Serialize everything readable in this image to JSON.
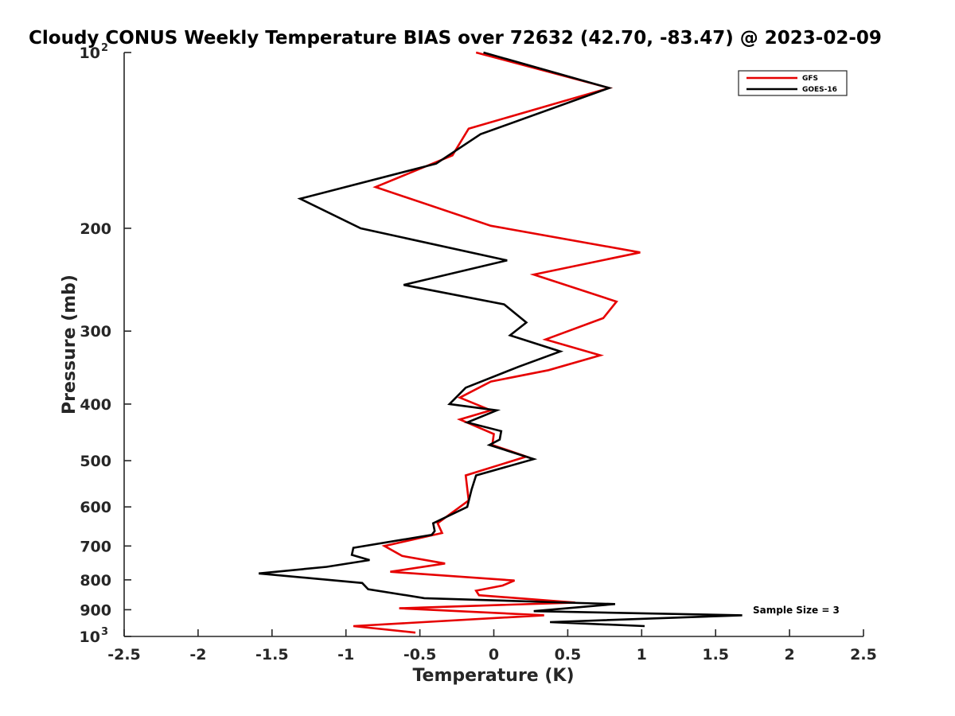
{
  "chart_data": {
    "type": "line",
    "title": "Cloudy CONUS Weekly Temperature BIAS over 72632 (42.70, -83.47) @ 2023-02-09",
    "xlabel": "Temperature (K)",
    "ylabel": "Pressure (mb)",
    "xlim": [
      -2.5,
      2.5
    ],
    "ylim": [
      100,
      1000
    ],
    "y_scale": "log",
    "y_reversed": true,
    "grid": false,
    "legend_position": "top-right",
    "x_ticks": [
      {
        "value": -2.5,
        "label": "-2.5"
      },
      {
        "value": -2,
        "label": "-2"
      },
      {
        "value": -1.5,
        "label": "-1.5"
      },
      {
        "value": -1,
        "label": "-1"
      },
      {
        "value": -0.5,
        "label": "-0.5"
      },
      {
        "value": 0,
        "label": "0"
      },
      {
        "value": 0.5,
        "label": "0.5"
      },
      {
        "value": 1,
        "label": "1"
      },
      {
        "value": 1.5,
        "label": "1.5"
      },
      {
        "value": 2,
        "label": "2"
      },
      {
        "value": 2.5,
        "label": "2.5"
      }
    ],
    "y_ticks": [
      {
        "value": 100,
        "label": "10",
        "sup": "2"
      },
      {
        "value": 200,
        "label": "200"
      },
      {
        "value": 300,
        "label": "300"
      },
      {
        "value": 400,
        "label": "400"
      },
      {
        "value": 500,
        "label": "500"
      },
      {
        "value": 600,
        "label": "600"
      },
      {
        "value": 700,
        "label": "700"
      },
      {
        "value": 800,
        "label": "800"
      },
      {
        "value": 900,
        "label": "900"
      },
      {
        "value": 1000,
        "label": "10",
        "sup": "3"
      }
    ],
    "series": [
      {
        "name": "GFS",
        "color": "#e60000",
        "points": [
          [
            -0.12,
            100
          ],
          [
            0.78,
            115
          ],
          [
            -0.17,
            135
          ],
          [
            -0.28,
            150
          ],
          [
            -0.8,
            170
          ],
          [
            -0.02,
            198
          ],
          [
            0.99,
            220
          ],
          [
            0.27,
            240
          ],
          [
            0.83,
            267
          ],
          [
            0.74,
            285
          ],
          [
            0.35,
            310
          ],
          [
            0.72,
            330
          ],
          [
            0.37,
            350
          ],
          [
            -0.02,
            366
          ],
          [
            -0.23,
            390
          ],
          [
            -0.02,
            410
          ],
          [
            -0.23,
            425
          ],
          [
            0.0,
            450
          ],
          [
            -0.01,
            470
          ],
          [
            0.22,
            492
          ],
          [
            -0.19,
            530
          ],
          [
            -0.17,
            585
          ],
          [
            -0.38,
            640
          ],
          [
            -0.35,
            665
          ],
          [
            -0.74,
            700
          ],
          [
            -0.62,
            728
          ],
          [
            -0.33,
            750
          ],
          [
            -0.7,
            775
          ],
          [
            0.14,
            802
          ],
          [
            0.06,
            818
          ],
          [
            -0.12,
            835
          ],
          [
            -0.1,
            850
          ],
          [
            0.55,
            875
          ],
          [
            -0.64,
            895
          ],
          [
            0.34,
            920
          ],
          [
            -0.95,
            960
          ],
          [
            -0.53,
            985
          ]
        ]
      },
      {
        "name": "GOES-16",
        "color": "#000000",
        "points": [
          [
            -0.07,
            100
          ],
          [
            0.78,
            115
          ],
          [
            -0.09,
            138
          ],
          [
            -0.39,
            155
          ],
          [
            -1.31,
            178
          ],
          [
            -0.9,
            200
          ],
          [
            0.09,
            227
          ],
          [
            -0.61,
            250
          ],
          [
            0.07,
            270
          ],
          [
            0.22,
            290
          ],
          [
            0.11,
            305
          ],
          [
            0.45,
            325
          ],
          [
            0.17,
            345
          ],
          [
            -0.19,
            375
          ],
          [
            -0.3,
            400
          ],
          [
            0.02,
            410
          ],
          [
            -0.18,
            430
          ],
          [
            0.05,
            445
          ],
          [
            0.04,
            460
          ],
          [
            -0.03,
            470
          ],
          [
            0.27,
            497
          ],
          [
            -0.12,
            530
          ],
          [
            -0.15,
            560
          ],
          [
            -0.18,
            600
          ],
          [
            -0.41,
            640
          ],
          [
            -0.4,
            660
          ],
          [
            -0.42,
            670
          ],
          [
            -0.95,
            705
          ],
          [
            -0.96,
            725
          ],
          [
            -0.84,
            740
          ],
          [
            -1.13,
            760
          ],
          [
            -1.59,
            780
          ],
          [
            -0.89,
            810
          ],
          [
            -0.85,
            830
          ],
          [
            -0.47,
            860
          ],
          [
            0.82,
            880
          ],
          [
            0.27,
            905
          ],
          [
            1.68,
            920
          ],
          [
            0.38,
            945
          ],
          [
            1.02,
            960
          ]
        ]
      }
    ],
    "legend": [
      {
        "label": "GFS",
        "color": "#e60000"
      },
      {
        "label": "GOES-16",
        "color": "#000000"
      }
    ],
    "annotations": [
      {
        "text": "Sample Size = 3"
      }
    ]
  }
}
